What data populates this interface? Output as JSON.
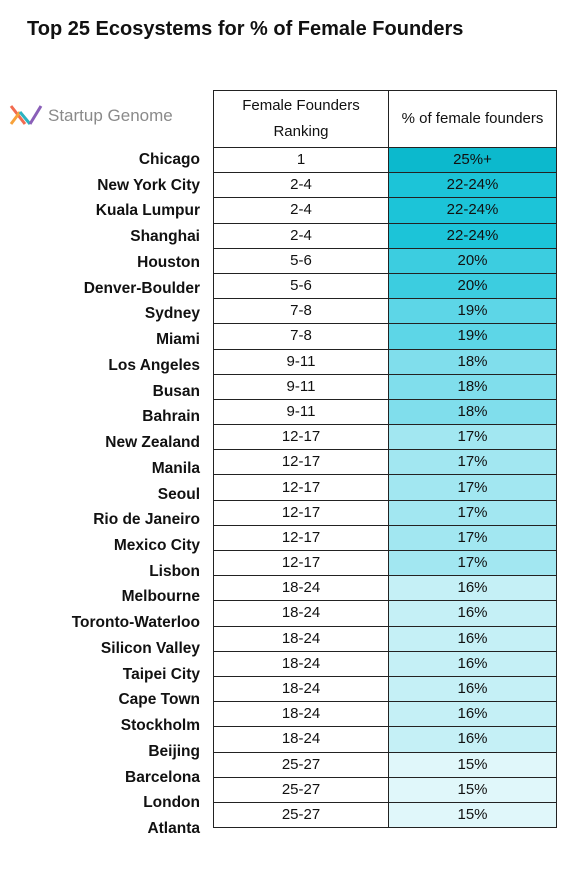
{
  "title": "Top 25 Ecosystems for % of Female Founders",
  "logo": "Startup Genome",
  "table": {
    "headers": [
      "Female Founders Ranking",
      "% of female founders"
    ],
    "rows": [
      [
        "Chicago",
        "1",
        "25%+",
        "#0cb9cd"
      ],
      [
        "New York City",
        "2-4",
        "22-24%",
        "#1cc4d8"
      ],
      [
        "Kuala Lumpur",
        "2-4",
        "22-24%",
        "#1cc4d8"
      ],
      [
        "Shanghai",
        "2-4",
        "22-24%",
        "#1cc4d8"
      ],
      [
        "Houston",
        "5-6",
        "20%",
        "#3ccde0"
      ],
      [
        "Denver-Boulder",
        "5-6",
        "20%",
        "#3ccde0"
      ],
      [
        "Sydney",
        "7-8",
        "19%",
        "#5dd6e7"
      ],
      [
        "Miami",
        "7-8",
        "19%",
        "#5dd6e7"
      ],
      [
        "Los Angeles",
        "9-11",
        "18%",
        "#80deec"
      ],
      [
        "Busan",
        "9-11",
        "18%",
        "#80deec"
      ],
      [
        "Bahrain",
        "9-11",
        "18%",
        "#80deec"
      ],
      [
        "New Zealand",
        "12-17",
        "17%",
        "#a2e7f1"
      ],
      [
        "Manila",
        "12-17",
        "17%",
        "#a2e7f1"
      ],
      [
        "Seoul",
        "12-17",
        "17%",
        "#a2e7f1"
      ],
      [
        "Rio de Janeiro",
        "12-17",
        "17%",
        "#a2e7f1"
      ],
      [
        "Mexico City",
        "12-17",
        "17%",
        "#a2e7f1"
      ],
      [
        "Lisbon",
        "12-17",
        "17%",
        "#a2e7f1"
      ],
      [
        "Melbourne",
        "18-24",
        "16%",
        "#c5f0f6"
      ],
      [
        "Toronto-Waterloo",
        "18-24",
        "16%",
        "#c5f0f6"
      ],
      [
        "Silicon Valley",
        "18-24",
        "16%",
        "#c5f0f6"
      ],
      [
        "Taipei City",
        "18-24",
        "16%",
        "#c5f0f6"
      ],
      [
        "Cape Town",
        "18-24",
        "16%",
        "#c5f0f6"
      ],
      [
        "Stockholm",
        "18-24",
        "16%",
        "#c5f0f6"
      ],
      [
        "Beijing",
        "18-24",
        "16%",
        "#c5f0f6"
      ],
      [
        "Barcelona",
        "25-27",
        "15%",
        "#e0f7fa"
      ],
      [
        "London",
        "25-27",
        "15%",
        "#e0f7fa"
      ],
      [
        "Atlanta",
        "25-27",
        "15%",
        "#e0f7fa"
      ]
    ]
  }
}
